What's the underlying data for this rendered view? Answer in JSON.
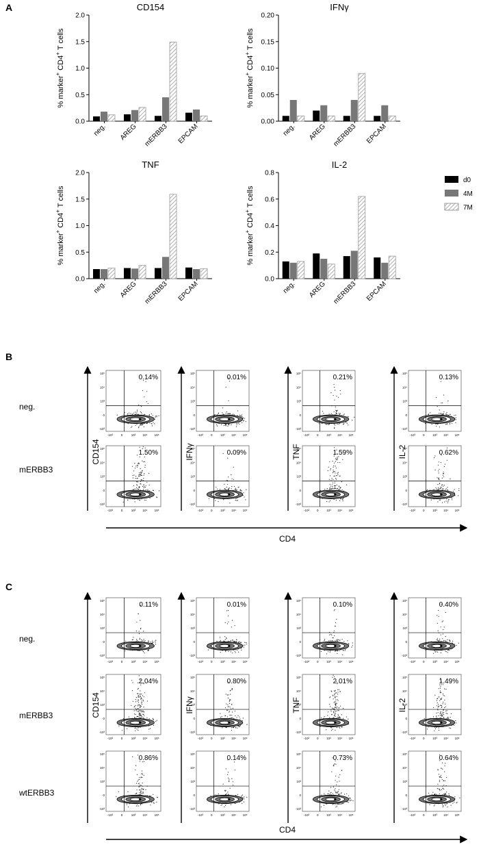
{
  "chart_data": [
    {
      "type": "bar",
      "title": "CD154",
      "ylabel": [
        "% marker",
        "+",
        "CD4",
        "+",
        "T cells"
      ],
      "categories": [
        "neg.",
        "AREG",
        "mERBB3",
        "EPCAM"
      ],
      "series": [
        {
          "color": "#000000",
          "values": [
            0.09,
            0.13,
            0.1,
            0.16
          ]
        },
        {
          "color": "#777777",
          "values": [
            0.18,
            0.21,
            0.45,
            0.22
          ]
        },
        {
          "color": "#9a9a9a",
          "hatch": true,
          "values": [
            0.12,
            0.26,
            1.49,
            0.1
          ]
        }
      ],
      "ylim": [
        0,
        2
      ],
      "yticks": [
        {
          "value": 0,
          "label": "0.0"
        },
        {
          "value": 0.5,
          "label": "0.5"
        },
        {
          "value": 1,
          "label": "1.0"
        },
        {
          "value": 1.5,
          "label": "1.5"
        },
        {
          "value": 2,
          "label": "2.0"
        }
      ]
    },
    {
      "type": "bar",
      "title": "IFNγ",
      "ylabel": [
        "% marker",
        "+",
        "CD4",
        "+",
        "T cells"
      ],
      "categories": [
        "neg.",
        "AREG",
        "mERBB3",
        "EPCAM"
      ],
      "series": [
        {
          "color": "#000000",
          "values": [
            0.01,
            0.02,
            0.01,
            0.01
          ]
        },
        {
          "color": "#777777",
          "values": [
            0.04,
            0.03,
            0.04,
            0.03
          ]
        },
        {
          "color": "#9a9a9a",
          "hatch": true,
          "values": [
            0.01,
            0.01,
            0.09,
            0.01
          ]
        }
      ],
      "ylim": [
        0,
        0.2
      ],
      "yticks": [
        {
          "value": 0,
          "label": "0.00"
        },
        0.05,
        {
          "value": 0.1,
          "label": "0.10"
        },
        0.15,
        {
          "value": 0.2,
          "label": "0.20"
        }
      ]
    },
    {
      "type": "bar",
      "title": "TNF",
      "ylabel": [
        "% marker",
        "+",
        "CD4",
        "+",
        "T cells"
      ],
      "categories": [
        "neg.",
        "AREG",
        "mERBB3",
        "EPCAM"
      ],
      "series": [
        {
          "color": "#000000",
          "values": [
            0.18,
            0.2,
            0.2,
            0.21
          ]
        },
        {
          "color": "#777777",
          "values": [
            0.18,
            0.19,
            0.41,
            0.18
          ]
        },
        {
          "color": "#9a9a9a",
          "hatch": true,
          "values": [
            0.2,
            0.25,
            1.59,
            0.19
          ]
        }
      ],
      "ylim": [
        0,
        2
      ],
      "yticks": [
        {
          "value": 0,
          "label": "0.0"
        },
        {
          "value": 0.5,
          "label": "0.5"
        },
        {
          "value": 1,
          "label": "1.0"
        },
        {
          "value": 1.5,
          "label": "1.5"
        },
        {
          "value": 2,
          "label": "2.0"
        }
      ]
    },
    {
      "type": "bar",
      "title": "IL-2",
      "ylabel": [
        "% marker",
        "+",
        "CD4",
        "+",
        "T cells"
      ],
      "categories": [
        "neg.",
        "AREG",
        "mERBB3",
        "EPCAM"
      ],
      "series": [
        {
          "name": "d0",
          "color": "#000000",
          "values": [
            0.13,
            0.19,
            0.17,
            0.16
          ]
        },
        {
          "name": "4M",
          "color": "#777777",
          "values": [
            0.12,
            0.15,
            0.21,
            0.12
          ]
        },
        {
          "name": "7M",
          "color": "#9a9a9a",
          "hatch": true,
          "values": [
            0.13,
            0.11,
            0.62,
            0.17
          ]
        }
      ],
      "ylim": [
        0,
        0.8
      ],
      "legend": "right",
      "yticks": [
        {
          "value": 0,
          "label": "0.0"
        },
        0.2,
        0.4,
        0.6,
        0.8
      ]
    }
  ],
  "panel_labels": [
    "A",
    "B",
    "C"
  ],
  "flow_axis_ticks": {
    "y": [
      "10⁵",
      "10⁴",
      "10³",
      "0",
      "-10³"
    ],
    "x": [
      "-10³",
      "0",
      "10³",
      "10⁴",
      "10⁵"
    ]
  },
  "flow_panels": [
    {
      "markers": [
        "CD154",
        "IFNγ",
        "TNF",
        "IL-2"
      ],
      "x_label": "CD4",
      "rows": [
        "neg.",
        "mERBB3"
      ],
      "percentages": [
        [
          "0.14%",
          "0.01%",
          "0.21%",
          "0.13%"
        ],
        [
          "1.50%",
          "0.09%",
          "1.59%",
          "0.62%"
        ]
      ]
    },
    {
      "markers": [
        "CD154",
        "IFNγ",
        "TNF",
        "IL-2"
      ],
      "x_label": "CD4",
      "rows": [
        "neg.",
        "mERBB3",
        "wtERBB3"
      ],
      "percentages": [
        [
          "0.11%",
          "0.01%",
          "0.10%",
          "0.40%"
        ],
        [
          "2.04%",
          "0.80%",
          "2.01%",
          "1.49%"
        ],
        [
          "0.86%",
          "0.14%",
          "0.73%",
          "0.64%"
        ]
      ]
    }
  ]
}
